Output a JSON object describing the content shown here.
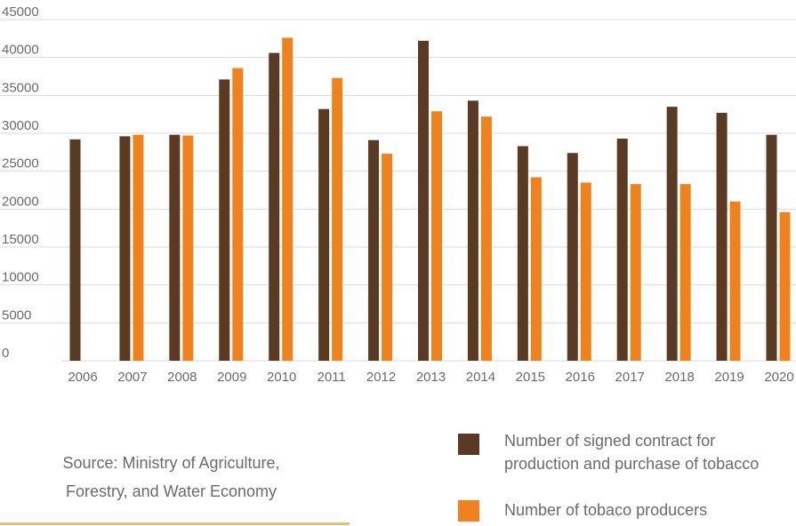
{
  "colors": {
    "contracts": "#5a3a22",
    "producers": "#f0821e",
    "grid": "#d9d9d9",
    "text": "#6b6b6b",
    "rule": "#e6bc74"
  },
  "source_text": "Source: Ministry of Agriculture, Forestry, and Water Economy",
  "chart_data": {
    "type": "bar",
    "title": "",
    "xlabel": "",
    "ylabel": "",
    "ylim": [
      0,
      45000
    ],
    "yticks": [
      0,
      5000,
      10000,
      15000,
      20000,
      25000,
      30000,
      35000,
      40000,
      45000
    ],
    "grid": "horizontal",
    "legend_position": "bottom-right",
    "categories": [
      "2006",
      "2007",
      "2008",
      "2009",
      "2010",
      "2011",
      "2012",
      "2013",
      "2014",
      "2015",
      "2016",
      "2017",
      "2018",
      "2019",
      "2020"
    ],
    "series": [
      {
        "name": "Number of signed contract for production and purchase of tobacco",
        "color": "#5a3a22",
        "values": [
          29200,
          29600,
          29800,
          37100,
          40600,
          33200,
          29100,
          42200,
          34300,
          28300,
          27400,
          29300,
          33500,
          32700,
          29800
        ]
      },
      {
        "name": "Number of tobaco producers",
        "color": "#f0821e",
        "values": [
          null,
          29800,
          29700,
          38600,
          42600,
          37300,
          27300,
          32900,
          32200,
          24200,
          23500,
          23300,
          23300,
          21000,
          19600
        ]
      }
    ]
  }
}
